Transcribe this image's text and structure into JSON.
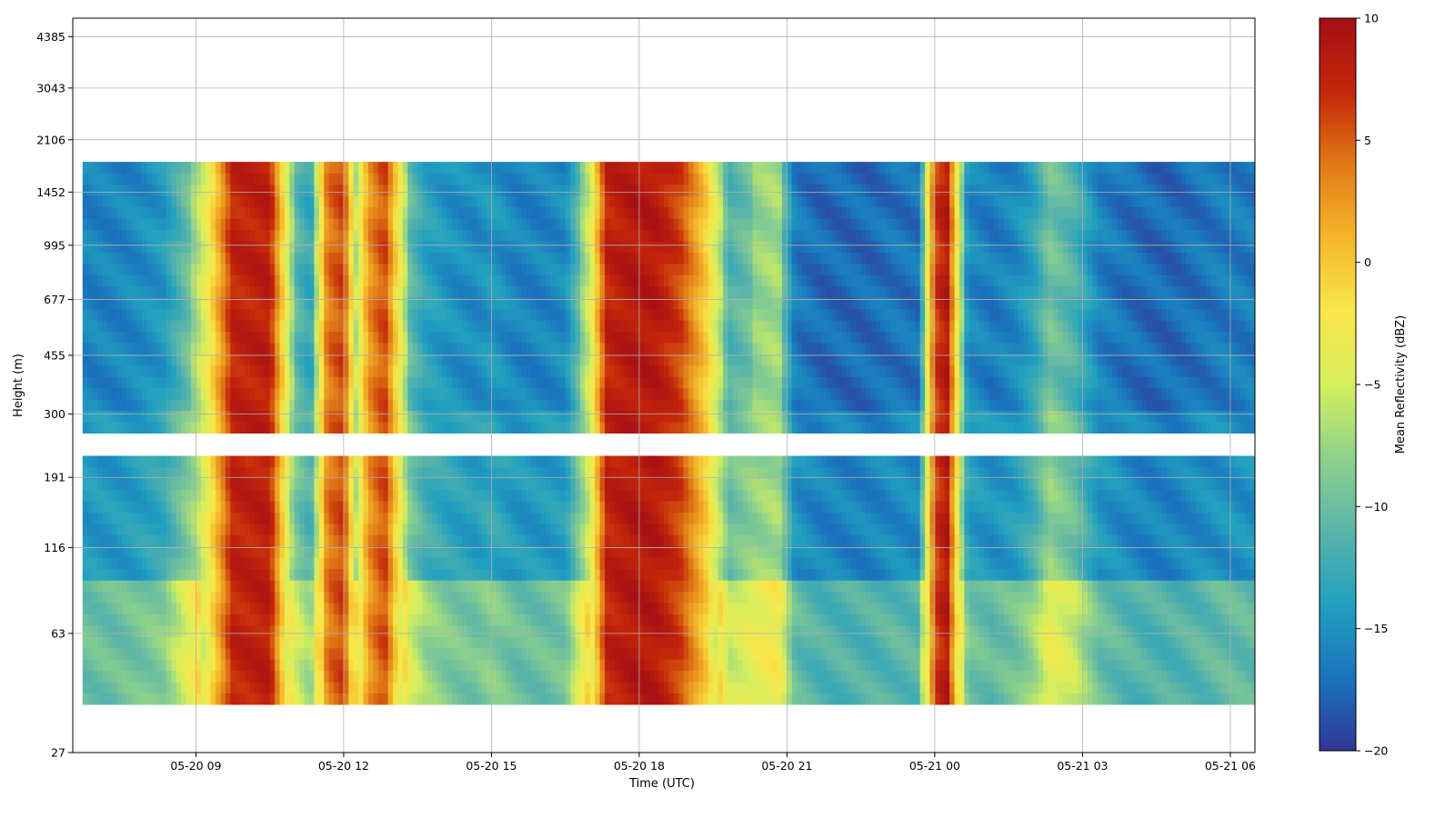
{
  "chart_data": {
    "type": "heatmap",
    "title": "",
    "xlabel": "Time (UTC)",
    "ylabel": "Height (m)",
    "colorbar_label": "Mean Reflectivity (dBZ)",
    "colormap": "RdYlBu_r",
    "colormap_stops": [
      "#313695",
      "#1a74bd",
      "#21a0c0",
      "#5ab4a8",
      "#8dd18c",
      "#d6ef5c",
      "#f9e64a",
      "#f4b72a",
      "#e07a16",
      "#c4260a",
      "#a50f15"
    ],
    "x_range": [
      "05-20 06:30",
      "05-21 06:30"
    ],
    "x_ticks": [
      "05-20 09",
      "05-20 12",
      "05-20 15",
      "05-20 18",
      "05-20 21",
      "05-21 00",
      "05-21 03",
      "05-21 06"
    ],
    "y_scale": "log",
    "y_range": [
      27,
      5000
    ],
    "y_ticks": [
      "27",
      "63",
      "116",
      "191",
      "300",
      "455",
      "677",
      "995",
      "1452",
      "2106",
      "3043",
      "4385"
    ],
    "clim": [
      -20,
      10
    ],
    "colorbar_ticks": [
      "10",
      "5",
      "0",
      "−5",
      "−10",
      "−15",
      "−20"
    ],
    "grid": true,
    "data_gap_height_range_m": [
      220,
      260
    ],
    "cloud_top_m": 1800,
    "reflectivity_profile": {
      "time_utc": [
        "06:40",
        "07:20",
        "07:50",
        "08:20",
        "08:40",
        "09:00",
        "09:15",
        "09:45",
        "10:30",
        "11:00",
        "11:20",
        "11:40",
        "12:00",
        "12:15",
        "12:30",
        "12:50",
        "13:20",
        "13:40",
        "14:10",
        "14:40",
        "15:00",
        "15:30",
        "16:00",
        "16:30",
        "17:00",
        "17:20",
        "17:50",
        "18:20",
        "18:50",
        "19:20",
        "19:50",
        "20:20",
        "20:50",
        "21:10",
        "21:40",
        "22:10",
        "22:40",
        "23:10",
        "23:40",
        "00:00",
        "00:15",
        "00:40",
        "01:10",
        "01:40",
        "02:00",
        "02:20",
        "02:50",
        "03:20",
        "03:50",
        "04:20",
        "04:50",
        "05:20",
        "05:50",
        "06:10"
      ],
      "dbz_mean": [
        -14.5,
        -14.5,
        -14.0,
        -13.0,
        -10.0,
        -7.0,
        -3.0,
        7.5,
        8.0,
        -9.0,
        -12.0,
        4.0,
        6.0,
        -6.0,
        2.5,
        6.0,
        -9.0,
        -12.0,
        -13.5,
        -14.0,
        -13.0,
        -14.5,
        -14.5,
        -14.0,
        -5.0,
        7.5,
        8.5,
        8.5,
        6.0,
        0.0,
        -10.0,
        -8.0,
        -7.0,
        -15.0,
        -16.0,
        -16.0,
        -16.0,
        -15.5,
        -15.5,
        6.0,
        8.5,
        -14.0,
        -15.0,
        -14.0,
        -12.0,
        -8.0,
        -10.0,
        -14.5,
        -15.5,
        -16.0,
        -16.0,
        -15.5,
        -15.0,
        -15.0
      ]
    }
  }
}
